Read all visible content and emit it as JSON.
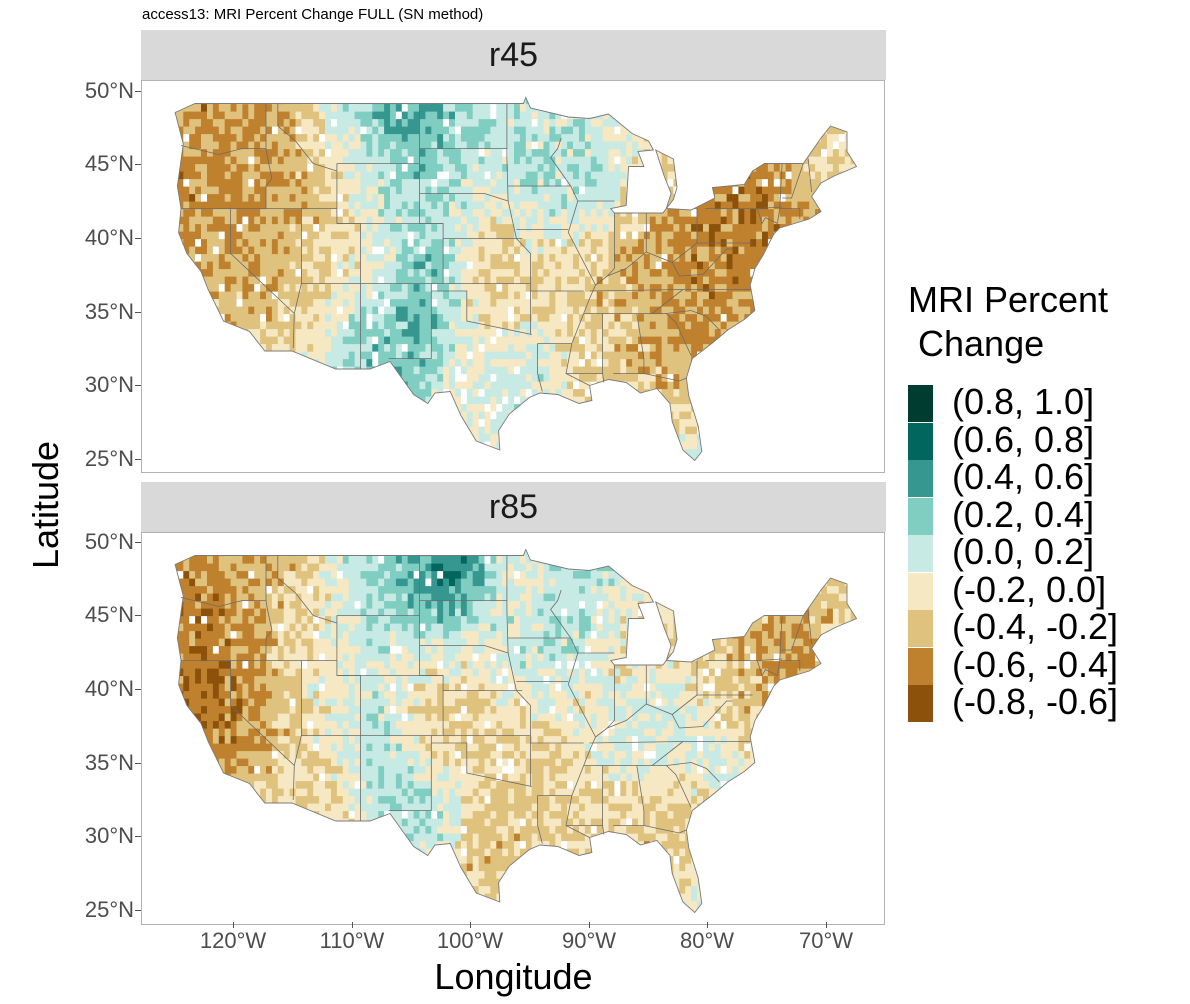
{
  "title": "access13: MRI Percent Change FULL (SN method)",
  "x_axis": {
    "label": "Longitude",
    "ticks": [
      "120°W",
      "110°W",
      "100°W",
      "90°W",
      "80°W",
      "70°W"
    ],
    "tick_values": [
      -120,
      -110,
      -100,
      -90,
      -80,
      -70
    ],
    "range": [
      -127.5,
      -64.5
    ]
  },
  "y_axis": {
    "label": "Latitude",
    "ticks": [
      "50°N",
      "45°N",
      "40°N",
      "35°N",
      "30°N",
      "25°N"
    ],
    "tick_values": [
      50,
      45,
      40,
      35,
      30,
      25
    ],
    "range": [
      24.3,
      50.5
    ]
  },
  "panels": [
    {
      "name": "r45"
    },
    {
      "name": "r85"
    }
  ],
  "legend": {
    "title": "MRI Percent\n Change",
    "items": [
      {
        "label": "(0.8, 1.0]",
        "color": "#003c30"
      },
      {
        "label": "(0.6, 0.8]",
        "color": "#01665e"
      },
      {
        "label": "(0.4, 0.6]",
        "color": "#35978f"
      },
      {
        "label": "(0.2, 0.4]",
        "color": "#80cdc1"
      },
      {
        "label": "(0.0, 0.2]",
        "color": "#c7eae5"
      },
      {
        "label": "(-0.2, 0.0]",
        "color": "#f6e8c3"
      },
      {
        "label": "(-0.4, -0.2]",
        "color": "#dfc27d"
      },
      {
        "label": "(-0.6, -0.4]",
        "color": "#bf812d"
      },
      {
        "label": "(-0.8, -0.6]",
        "color": "#8c510a"
      }
    ]
  }
}
